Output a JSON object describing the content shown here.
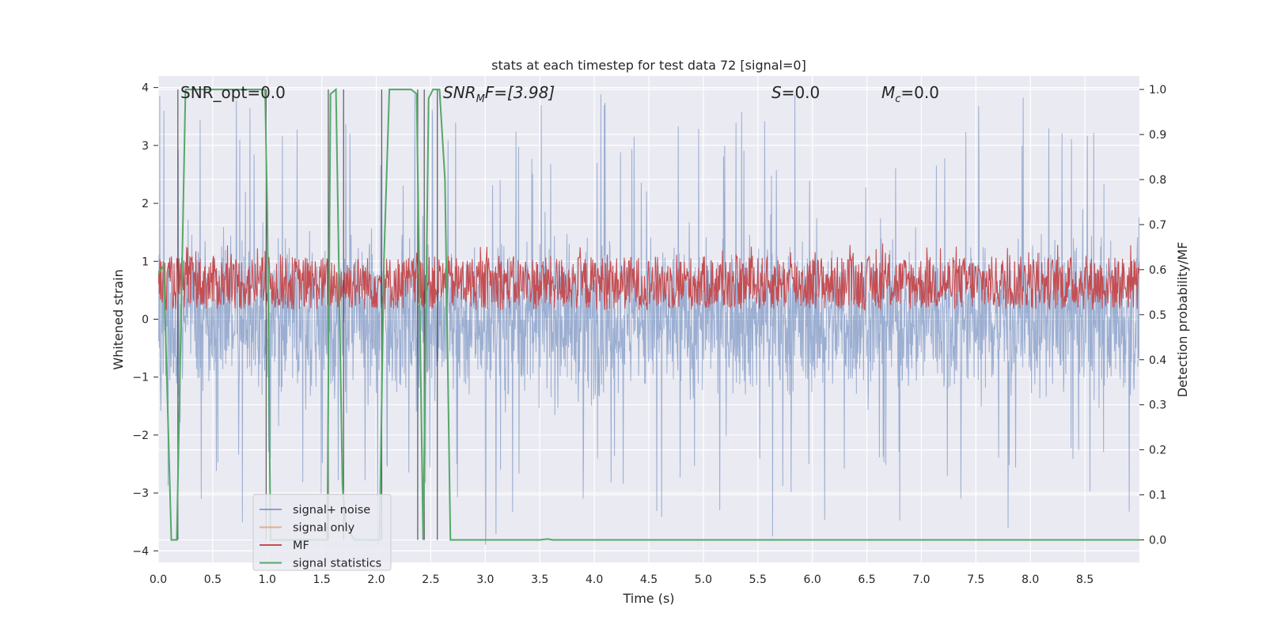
{
  "chart_data": {
    "type": "line",
    "title": "stats at each timestep for test data 72 [signal=0]",
    "xlabel": "Time (s)",
    "ylabel_left": "Whitened strain",
    "ylabel_right": "Detection probability/MF",
    "xlim": [
      0.0,
      9.0
    ],
    "ylim_left": [
      -4.2,
      4.2
    ],
    "ylim_right": [
      -0.05,
      1.03
    ],
    "x_ticks": [
      "0.0",
      "0.5",
      "1.0",
      "1.5",
      "2.0",
      "2.5",
      "3.0",
      "3.5",
      "4.0",
      "4.5",
      "5.0",
      "5.5",
      "6.0",
      "6.5",
      "7.0",
      "7.5",
      "8.0",
      "8.5"
    ],
    "y_ticks_left": [
      "4",
      "3",
      "2",
      "1",
      "0",
      "−1",
      "−2",
      "−3",
      "−4"
    ],
    "y_ticks_right": [
      "1.0",
      "0.9",
      "0.8",
      "0.7",
      "0.6",
      "0.5",
      "0.4",
      "0.3",
      "0.2",
      "0.1",
      "0.0"
    ],
    "grid": true,
    "legend_position": "lower-left",
    "annotations": {
      "snr_opt": "SNR_opt=0.0",
      "snr_mf_sym": "SNR",
      "snr_mf_sub": "M",
      "snr_mf_rest": "F=[3.98]",
      "s_sym": "S",
      "s_rest": "=0.0",
      "mc_sym": "M",
      "mc_sub": "c",
      "mc_rest": "=0.0"
    },
    "series": [
      {
        "name": "signal+ noise",
        "axis": "left",
        "color": "#4c72b0",
        "kind": "noise",
        "amplitude_range": [
          -4.0,
          3.9
        ]
      },
      {
        "name": "signal only",
        "axis": "left",
        "color": "#dd8452",
        "values": []
      },
      {
        "name": "MF",
        "axis": "right",
        "color": "#c44e52",
        "kind": "band",
        "range": [
          0.51,
          0.63
        ]
      },
      {
        "name": "signal statistics",
        "axis": "right",
        "color": "#55a868",
        "x": [
          0.0,
          0.05,
          0.12,
          0.17,
          0.25,
          0.98,
          1.0,
          1.03,
          1.55,
          1.58,
          1.63,
          1.69,
          1.72,
          1.8,
          2.03,
          2.07,
          2.12,
          2.32,
          2.37,
          2.43,
          2.48,
          2.52,
          2.58,
          2.63,
          2.68,
          3.5,
          3.57,
          3.62,
          9.0
        ],
        "y": [
          0.59,
          0.61,
          0.0,
          0.0,
          1.0,
          1.0,
          0.73,
          0.0,
          0.0,
          0.99,
          1.0,
          0.12,
          0.03,
          0.0,
          0.0,
          0.62,
          1.0,
          1.0,
          0.99,
          0.0,
          0.98,
          1.0,
          1.0,
          0.8,
          0.0,
          0.0,
          0.002,
          0.0,
          0.0
        ]
      }
    ],
    "vertical_markers_x": [
      0.18,
      0.99,
      1.56,
      1.7,
      2.05,
      2.38,
      2.44,
      2.56
    ]
  }
}
